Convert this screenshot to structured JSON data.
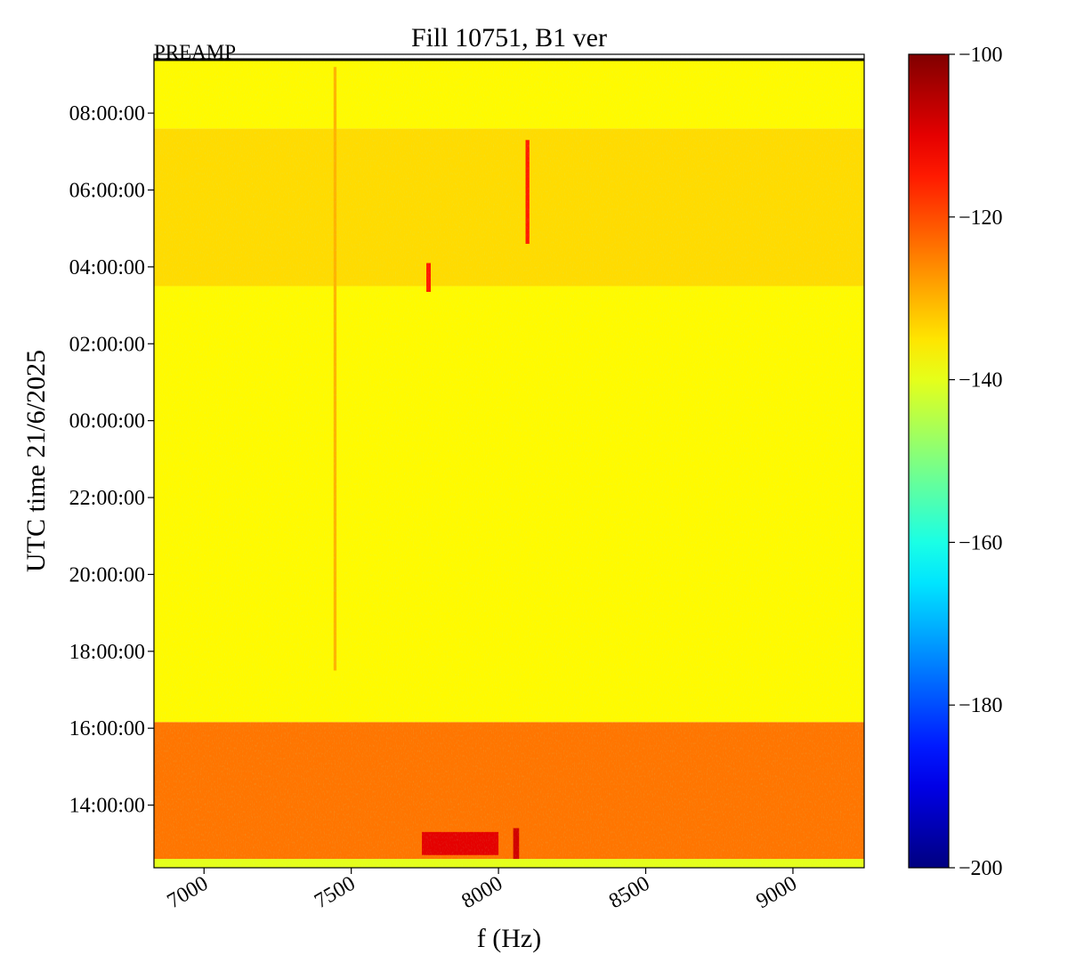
{
  "chart_data": {
    "type": "heatmap",
    "title": "Fill 10751, B1 ver",
    "annotation": "PREAMP",
    "x_label": "f (Hz)",
    "y_label": "UTC time 21/6/2025",
    "xlim": [
      6830,
      9242
    ],
    "ylim": [
      -11.63,
      9.53
    ],
    "xticks": [
      7000,
      7500,
      8000,
      8500,
      9000
    ],
    "yticks": [
      {
        "value": -10,
        "label": "14:00:00"
      },
      {
        "value": -8,
        "label": "16:00:00"
      },
      {
        "value": -6,
        "label": "18:00:00"
      },
      {
        "value": -4,
        "label": "20:00:00"
      },
      {
        "value": -2,
        "label": "22:00:00"
      },
      {
        "value": 0,
        "label": "00:00:00"
      },
      {
        "value": 2,
        "label": "02:00:00"
      },
      {
        "value": 4,
        "label": "04:00:00"
      },
      {
        "value": 6,
        "label": "06:00:00"
      },
      {
        "value": 8,
        "label": "08:00:00"
      }
    ],
    "colormap": "jet",
    "clim": [
      -200,
      -100
    ],
    "cticks": [
      {
        "value": -200,
        "label": "−200"
      },
      {
        "value": -180,
        "label": "−180"
      },
      {
        "value": -160,
        "label": "−160"
      },
      {
        "value": -140,
        "label": "−140"
      },
      {
        "value": -120,
        "label": "−120"
      },
      {
        "value": -100,
        "label": "−100"
      }
    ],
    "cells": [
      {
        "x": [
          6830,
          9242
        ],
        "y": [
          -11.63,
          -11.4
        ],
        "value": -140
      },
      {
        "x": [
          6830,
          9242
        ],
        "y": [
          -11.4,
          -7.84
        ],
        "value": -124
      },
      {
        "x": [
          6830,
          9242
        ],
        "y": [
          -7.84,
          3.5
        ],
        "value": -137
      },
      {
        "x": [
          6830,
          9242
        ],
        "y": [
          3.5,
          7.6
        ],
        "value": -134
      },
      {
        "x": [
          6830,
          9242
        ],
        "y": [
          7.6,
          9.4
        ],
        "value": -137
      },
      {
        "x": [
          7740,
          8000
        ],
        "y": [
          -11.3,
          -10.7
        ],
        "value": -110
      },
      {
        "x": [
          8050,
          8070
        ],
        "y": [
          -11.4,
          -10.6
        ],
        "value": -108
      },
      {
        "x": [
          7755,
          7770
        ],
        "y": [
          3.35,
          4.1
        ],
        "value": -115
      },
      {
        "x": [
          8092,
          8105
        ],
        "y": [
          4.6,
          7.3
        ],
        "value": -115
      },
      {
        "x": [
          7440,
          7450
        ],
        "y": [
          -6.5,
          9.2
        ],
        "value": -130
      }
    ]
  }
}
